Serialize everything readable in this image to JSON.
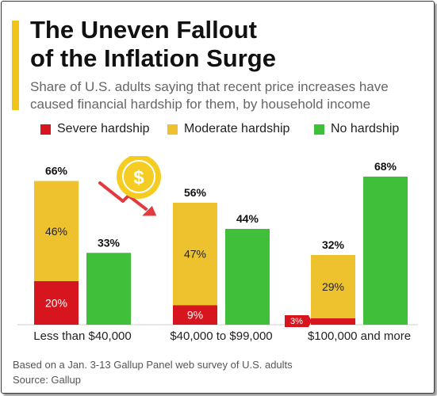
{
  "title_line1": "The Uneven Fallout",
  "title_line2": "of the Inflation Surge",
  "subtitle_line1": "Share of U.S. adults saying that recent price increases have",
  "subtitle_line2": "caused financial hardship for them, by household income",
  "footnote": "Based on a Jan. 3-13 Gallup Panel web survey of U.S. adults",
  "source": "Source: Gallup",
  "icons": [
    "coin-dollar-icon",
    "down-trend-arrow-icon"
  ],
  "chart_data": {
    "type": "bar",
    "stacked_series": [
      "Severe hardship",
      "Moderate hardship"
    ],
    "categories": [
      "Less than $40,000",
      "$40,000 to $99,000",
      "$100,000 and more"
    ],
    "series": [
      {
        "name": "Severe hardship",
        "color": "#d7151f",
        "values": [
          20,
          9,
          3
        ],
        "labels": [
          "20%",
          "9%",
          "3%"
        ]
      },
      {
        "name": "Moderate hardship",
        "color": "#eec22f",
        "values": [
          46,
          47,
          29
        ],
        "labels": [
          "46%",
          "47%",
          "29%"
        ]
      },
      {
        "name": "No hardship",
        "color": "#3fbf3a",
        "values": [
          33,
          44,
          68
        ],
        "labels": [
          "33%",
          "44%",
          "68%"
        ]
      }
    ],
    "hardship_totals": [
      66,
      56,
      32
    ],
    "hardship_total_labels": [
      "66%",
      "56%",
      "32%"
    ],
    "ylim": [
      0,
      68
    ],
    "legend": "top"
  }
}
